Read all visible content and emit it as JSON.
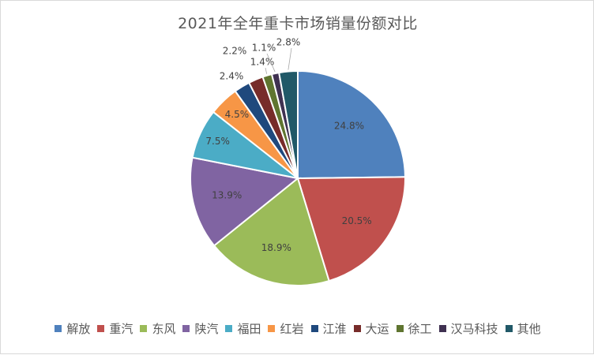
{
  "chart_data": {
    "type": "pie",
    "title": "2021年全年重卡市场销量份额对比",
    "categories": [
      "解放",
      "重汽",
      "东风",
      "陕汽",
      "福田",
      "红岩",
      "江淮",
      "大运",
      "徐工",
      "汉马科技",
      "其他"
    ],
    "values": [
      24.8,
      20.5,
      18.9,
      13.9,
      7.5,
      4.5,
      2.4,
      2.2,
      1.4,
      1.1,
      2.8
    ],
    "labels": [
      "24.8%",
      "20.5%",
      "18.9%",
      "13.9%",
      "7.5%",
      "4.5%",
      "2.4%",
      "2.2%",
      "1.4%",
      "1.1%",
      "2.8%"
    ],
    "colors": [
      "#4f81bd",
      "#c0504d",
      "#9bbb59",
      "#8064a2",
      "#4bacc6",
      "#f79646",
      "#1f497d",
      "#772c2a",
      "#5f7530",
      "#3f3151",
      "#215968"
    ],
    "legend_position": "bottom"
  }
}
